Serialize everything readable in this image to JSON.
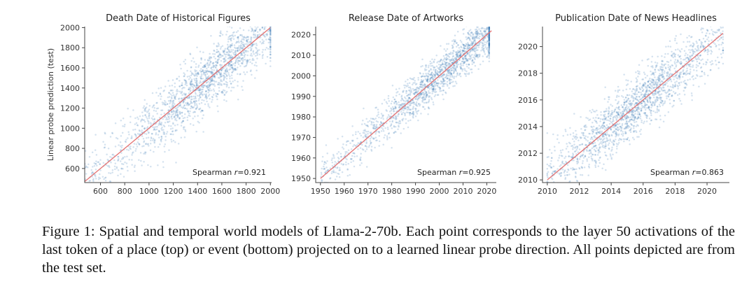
{
  "chart_data": [
    {
      "type": "scatter",
      "title": "Death Date of Historical Figures",
      "ylabel": "Linear probe prediction (test)",
      "xlabel": "",
      "xlim": [
        470,
        2010
      ],
      "ylim": [
        460,
        2010
      ],
      "xticks": [
        600,
        800,
        1000,
        1200,
        1400,
        1600,
        1800,
        2000
      ],
      "yticks": [
        600,
        800,
        1000,
        1200,
        1400,
        1600,
        1800,
        2000
      ],
      "fit_line": [
        [
          470,
          470
        ],
        [
          2000,
          2000
        ]
      ],
      "points": {
        "count": 1800,
        "x_range": [
          470,
          2000
        ],
        "density_center": 1500,
        "noise_sd": 150
      },
      "annotation": {
        "prefix": "Spearman ",
        "r_symbol": "r",
        "value": "=0.921"
      },
      "spearman_r": 0.921,
      "color": "#1f77b4",
      "fit_color": "#e57373"
    },
    {
      "type": "scatter",
      "title": "Release Date of Artworks",
      "ylabel": "",
      "xlabel": "",
      "xlim": [
        1948,
        2024
      ],
      "ylim": [
        1948,
        2024
      ],
      "xticks": [
        1950,
        1960,
        1970,
        1980,
        1990,
        2000,
        2010,
        2020
      ],
      "yticks": [
        1950,
        1960,
        1970,
        1980,
        1990,
        2000,
        2010,
        2020
      ],
      "fit_line": [
        [
          1950,
          1950
        ],
        [
          2022,
          2022
        ]
      ],
      "points": {
        "count": 1800,
        "x_range": [
          1950,
          2021
        ],
        "density_center": 2005,
        "noise_sd": 5
      },
      "annotation": {
        "prefix": "Spearman ",
        "r_symbol": "r",
        "value": "=0.925"
      },
      "spearman_r": 0.925,
      "color": "#1f77b4",
      "fit_color": "#e57373"
    },
    {
      "type": "scatter",
      "title": "Publication Date of News Headlines",
      "ylabel": "",
      "xlabel": "",
      "xlim": [
        2009.7,
        2021.4
      ],
      "ylim": [
        2009.8,
        2021.5
      ],
      "xticks": [
        2010,
        2012,
        2014,
        2016,
        2018,
        2020
      ],
      "yticks": [
        2010,
        2012,
        2014,
        2016,
        2018,
        2020
      ],
      "fit_line": [
        [
          2010,
          2010
        ],
        [
          2021,
          2021
        ]
      ],
      "points": {
        "count": 1800,
        "x_range": [
          2010,
          2021
        ],
        "density_center": 2015.5,
        "noise_sd": 1.1
      },
      "annotation": {
        "prefix": "Spearman ",
        "r_symbol": "r",
        "value": "=0.863"
      },
      "spearman_r": 0.863,
      "color": "#1f77b4",
      "fit_color": "#e57373"
    }
  ],
  "caption": {
    "text": "Figure 1: Spatial and temporal world models of Llama-2-70b. Each point corresponds to the layer 50 activations of the last token of a place (top) or event (bottom) projected on to a learned linear probe direction. All points depicted are from the test set."
  }
}
